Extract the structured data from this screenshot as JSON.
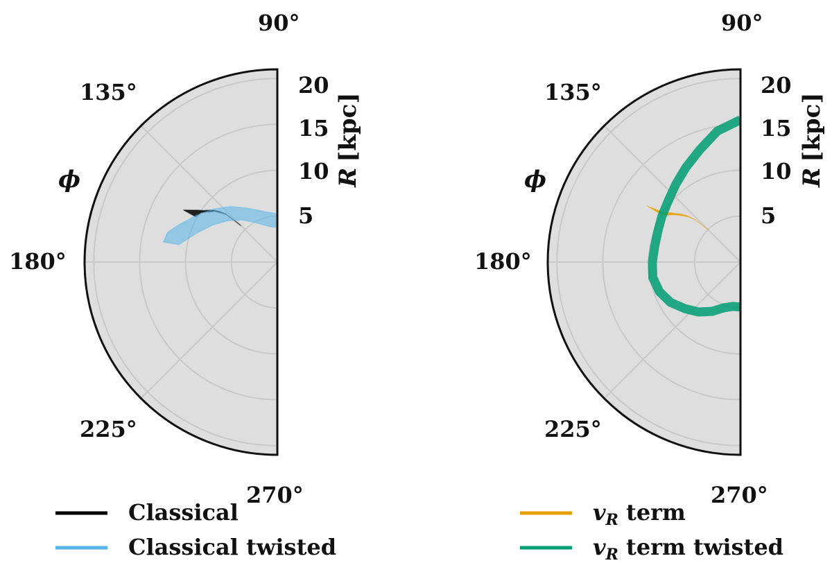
{
  "chart_data": [
    {
      "type": "polar",
      "angular_range_deg": [
        90,
        270
      ],
      "radial_range_kpc": [
        0,
        21
      ],
      "grid": true,
      "background": "#dedede",
      "angle_ticks": [
        "90°",
        "135°",
        "180°",
        "225°",
        "270°"
      ],
      "radial_ticks": [
        "5",
        "10",
        "15",
        "20"
      ],
      "angle_label": "ϕ",
      "radial_label": {
        "symbol": "R",
        "unit": "[kpc]"
      },
      "series": [
        {
          "name": "Classical",
          "color": "#000000",
          "kind": "band",
          "phi_deg": [
            135,
            137,
            139,
            141,
            143,
            145,
            147,
            149,
            151
          ],
          "r_inner": [
            5.6,
            7.6,
            8.2,
            8.8,
            9.1,
            9.5,
            9.9,
            10.0,
            10.2
          ],
          "r_outer": [
            5.8,
            7.7,
            8.4,
            9.0,
            9.4,
            9.8,
            10.4,
            11.0,
            11.7
          ]
        },
        {
          "name": "Classical twisted",
          "color": "#56b4e9",
          "kind": "band",
          "phi_deg": [
            92,
            100,
            110,
            120,
            130,
            140,
            150,
            160,
            165,
            170
          ],
          "r_inner": [
            3.8,
            3.9,
            4.3,
            5.0,
            6.0,
            7.0,
            8.1,
            9.3,
            10.0,
            10.9
          ],
          "r_outer": [
            5.3,
            5.5,
            6.0,
            6.8,
            7.9,
            9.0,
            10.2,
            11.6,
            12.4,
            12.6
          ]
        },
        {
          "name": "v_R term",
          "color": "#e69f00",
          "kind": "band",
          "phi_deg": [
            135,
            137,
            139,
            141,
            143,
            145,
            147,
            149
          ],
          "r_inner": [
            4.9,
            6.7,
            7.5,
            8.0,
            8.5,
            9.0,
            9.4,
            10.0
          ],
          "r_outer": [
            5.0,
            6.8,
            7.7,
            8.3,
            8.8,
            9.4,
            9.9,
            11.9
          ]
        },
        {
          "name": "v_R term twisted",
          "color": "#009e73",
          "kind": "arc",
          "phi_deg": [
            90,
            100,
            110,
            120,
            130,
            140,
            150,
            160,
            170,
            180,
            190,
            200,
            210,
            220,
            230,
            240,
            250,
            260,
            270
          ],
          "r": [
            15.5,
            14.5,
            13.0,
            11.9,
            11.0,
            10.3,
            9.9,
            9.6,
            9.5,
            9.6,
            9.7,
            9.4,
            8.8,
            7.9,
            7.1,
            6.2,
            5.3,
            4.9,
            4.9
          ]
        }
      ]
    }
  ],
  "legend": [
    {
      "label": "Classical",
      "color": "#000000"
    },
    {
      "label": "Classical twisted",
      "color": "#56b4e9"
    },
    {
      "label_main": "v",
      "label_sub": "R",
      "label_rest": " term",
      "color": "#e69f00"
    },
    {
      "label_main": "v",
      "label_sub": "R",
      "label_rest": " term twisted",
      "color": "#009e73"
    }
  ]
}
